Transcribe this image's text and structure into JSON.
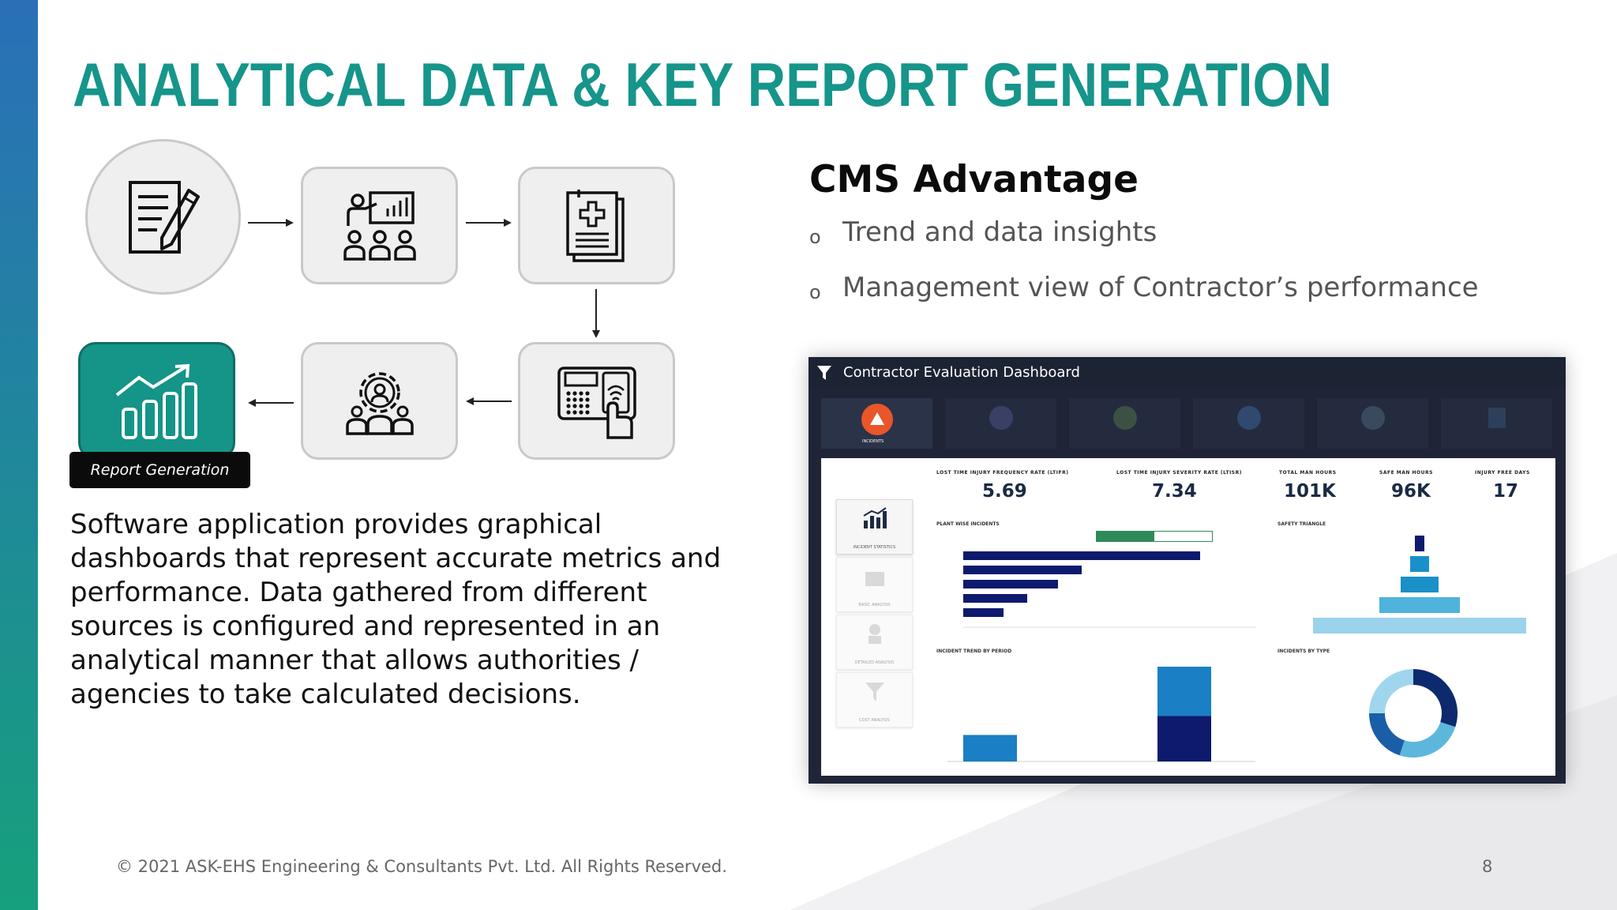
{
  "slide": {
    "title": "ANALYTICAL DATA & KEY REPORT GENERATION",
    "accent_color": "#16958a",
    "page_number": "8",
    "footer": "© 2021 ASK-EHS Engineering & Consultants Pvt. Ltd. All Rights Reserved."
  },
  "flow": {
    "nodes": [
      {
        "icon": "document-pen-icon"
      },
      {
        "icon": "presentation-team-icon"
      },
      {
        "icon": "medical-report-icon"
      },
      {
        "icon": "biometric-scanner-icon"
      },
      {
        "icon": "gear-team-icon"
      },
      {
        "icon": "growth-chart-icon"
      }
    ],
    "report_label": "Report Generation"
  },
  "description": {
    "lines": [
      "Software application provides graphical",
      "dashboards that represent accurate metrics and",
      "performance.  Data gathered from different",
      "sources is configured and represented in an",
      "analytical manner that allows authorities /",
      "agencies to take calculated decisions."
    ]
  },
  "advantage": {
    "title": "CMS Advantage",
    "bullets": [
      "Trend and data insights",
      "Management view of Contractor’s performance"
    ]
  },
  "dashboard": {
    "title": "Contractor Evaluation Dashboard",
    "active_tab": "INCIDENTS",
    "kpis": [
      {
        "label": "LOST TIME INJURY FREQUENCY RATE (LTIFR)",
        "value": "5.69"
      },
      {
        "label": "LOST TIME INJURY SEVERITY RATE (LTISR)",
        "value": "7.34"
      },
      {
        "label": "TOTAL MAN HOURS",
        "value": "101K"
      },
      {
        "label": "SAFE MAN HOURS",
        "value": "96K"
      },
      {
        "label": "INJURY FREE DAYS",
        "value": "17"
      }
    ],
    "section_titles": {
      "plant": "PLANT WISE INCIDENTS",
      "safety": "SAFETY TRIANGLE",
      "trend": "INCIDENT TREND BY PERIOD",
      "type": "INCIDENTS BY TYPE"
    },
    "side_cards": [
      "INCIDENT STATISTICS",
      "BASIC ANALYSIS",
      "DETAILED ANALYSIS",
      "COST ANALYSIS"
    ],
    "plant_bars": [
      1.0,
      0.5,
      0.4,
      0.27,
      0.17
    ],
    "triangle_levels": [
      0.04,
      0.08,
      0.16,
      0.34,
      0.9
    ],
    "trend_bars": [
      {
        "dark": 0.0,
        "light": 0.28
      },
      {
        "dark": 0.48,
        "light": 0.52
      }
    ],
    "donut": [
      {
        "value": 0.3,
        "color": "#0d2a6e"
      },
      {
        "value": 0.25,
        "color": "#5db7dd"
      },
      {
        "value": 0.2,
        "color": "#1b5ea8"
      },
      {
        "value": 0.25,
        "color": "#9fd6ee"
      }
    ]
  }
}
